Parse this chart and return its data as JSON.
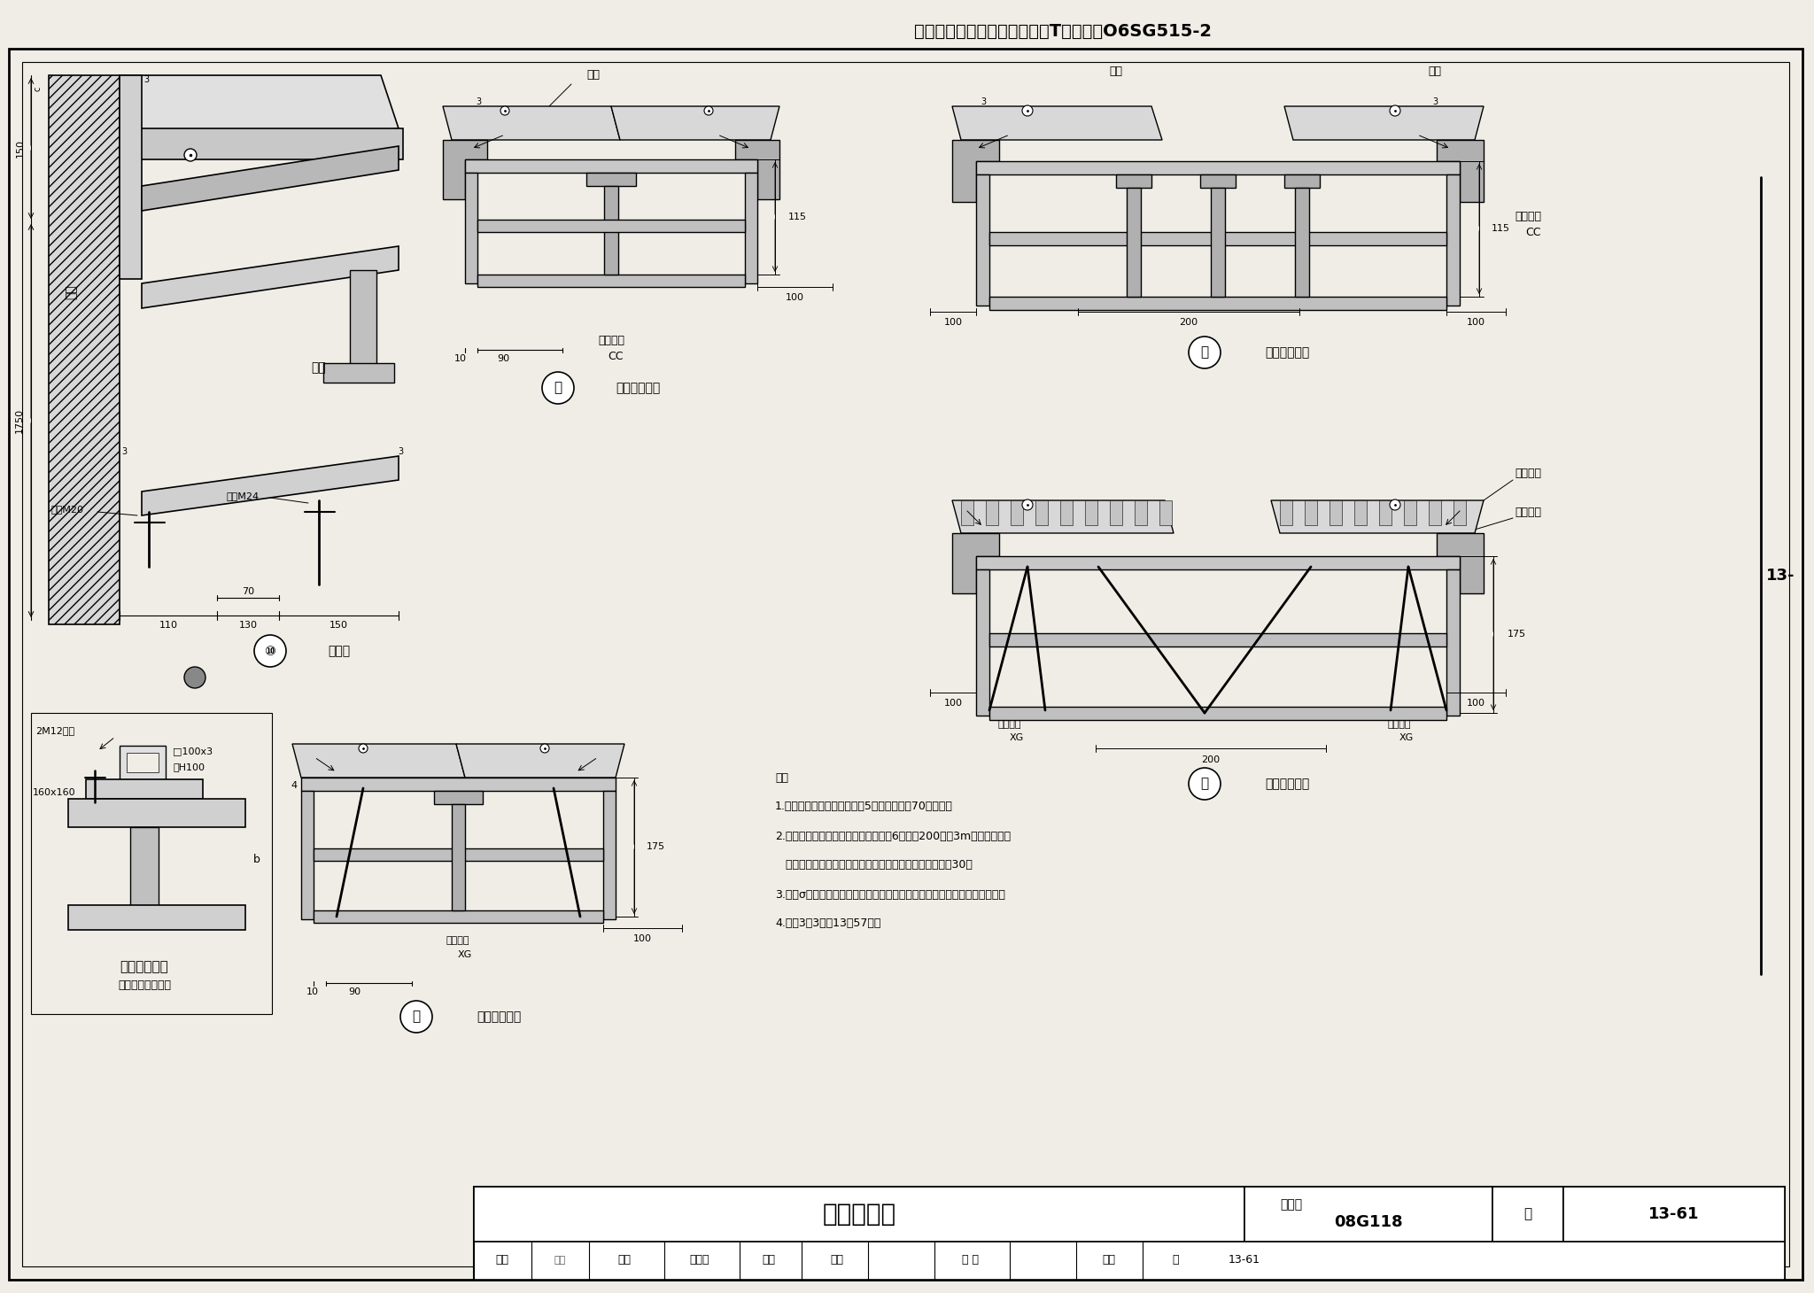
{
  "title_top": "《轻型屋面梯形钢屋架（剖分T型钢）》O6SG515-2",
  "title_main": "安装节点图",
  "fig_number": "08G118",
  "page": "13-61",
  "right_label": "13-",
  "background_color": "#f0ede6",
  "notes": [
    "注：",
    "1.未注明的角焊缝焊脚尺寸为5，长度不小于70，满焊。",
    "2.内檐沟和内天沟的水平支托钢板厚为6，宽为200，每3m一个，位于竖",
    "   向支撑节点附近。当采用天沟本身找坡时，宜再加高竖板30。",
    "3.图中σ根据天沟宽度确定。采用无檩大型屋面板时，天沟做法可参考本图。",
    "4.剖面3－3见第13－57页。"
  ]
}
